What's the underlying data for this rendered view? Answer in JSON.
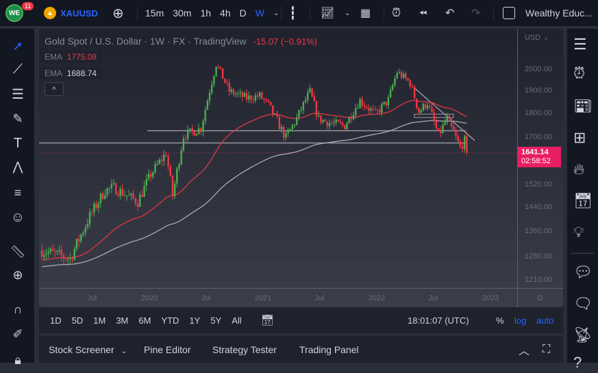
{
  "topbar": {
    "notification_count": "11",
    "symbol": "XAUUSD",
    "intervals": [
      "15m",
      "30m",
      "1h",
      "4h",
      "D",
      "W"
    ],
    "active_interval": "W",
    "layout_name": "Wealthy Educ...",
    "colors": {
      "accent": "#2962ff",
      "badge": "#f23645"
    }
  },
  "legend": {
    "title": "Gold Spot / U.S. Dollar · 1W · FX · TradingView",
    "change": "-15.07 (−0.91%)",
    "ema1_label": "EMA",
    "ema1_value": "1775.08",
    "ema2_label": "EMA",
    "ema2_value": "1688.74",
    "collapse": "^"
  },
  "price_axis": {
    "currency": "USD",
    "ticks": [
      "2000.00",
      "1900.00",
      "1800.00",
      "1700.00",
      "1520.00",
      "1440.00",
      "1360.00",
      "1280.00",
      "1210.00"
    ],
    "last_price": "1641.14",
    "countdown": "02:58:52",
    "scale": "log"
  },
  "time_axis": {
    "ticks": [
      {
        "label": "Jul",
        "date": "2019-07-01"
      },
      {
        "label": "2020",
        "date": "2020-01-01"
      },
      {
        "label": "Jul",
        "date": "2020-07-01"
      },
      {
        "label": "2021",
        "date": "2021-01-01"
      },
      {
        "label": "Jul",
        "date": "2021-07-01"
      },
      {
        "label": "2022",
        "date": "2022-01-01"
      },
      {
        "label": "Jul",
        "date": "2022-07-01"
      },
      {
        "label": "2023",
        "date": "2023-01-01"
      }
    ]
  },
  "range_bar": {
    "ranges": [
      "1D",
      "5D",
      "1M",
      "3M",
      "6M",
      "YTD",
      "1Y",
      "5Y",
      "All"
    ],
    "clock": "18:01:07 (UTC)",
    "percent": "%",
    "log": "log",
    "auto": "auto"
  },
  "bottom_panel": {
    "tabs": [
      "Stock Screener",
      "Pine Editor",
      "Strategy Tester",
      "Trading Panel"
    ]
  },
  "chart_data": {
    "type": "candlestick",
    "symbol": "XAUUSD",
    "interval": "1W",
    "price_path": [
      [
        "2019-01-21",
        1300
      ],
      [
        "2019-04-22",
        1275
      ],
      [
        "2019-06-24",
        1410
      ],
      [
        "2019-08-12",
        1500
      ],
      [
        "2019-09-09",
        1510
      ],
      [
        "2019-11-25",
        1460
      ],
      [
        "2020-01-06",
        1560
      ],
      [
        "2020-02-24",
        1640
      ],
      [
        "2020-03-16",
        1480
      ],
      [
        "2020-04-20",
        1710
      ],
      [
        "2020-06-15",
        1740
      ],
      [
        "2020-08-03",
        2030
      ],
      [
        "2020-09-14",
        1900
      ],
      [
        "2020-11-09",
        1870
      ],
      [
        "2020-12-21",
        1880
      ],
      [
        "2021-01-18",
        1840
      ],
      [
        "2021-03-15",
        1700
      ],
      [
        "2021-04-19",
        1780
      ],
      [
        "2021-05-31",
        1900
      ],
      [
        "2021-06-28",
        1780
      ],
      [
        "2021-08-09",
        1760
      ],
      [
        "2021-09-20",
        1750
      ],
      [
        "2021-11-08",
        1860
      ],
      [
        "2021-12-27",
        1800
      ],
      [
        "2022-02-07",
        1860
      ],
      [
        "2022-03-07",
        1990
      ],
      [
        "2022-04-18",
        1940
      ],
      [
        "2022-05-16",
        1810
      ],
      [
        "2022-06-13",
        1850
      ],
      [
        "2022-07-18",
        1710
      ],
      [
        "2022-08-15",
        1780
      ],
      [
        "2022-09-26",
        1660
      ],
      [
        "2022-10-10",
        1690
      ],
      [
        "2022-10-24",
        1641.14
      ]
    ],
    "ema_fast": {
      "label": "EMA",
      "value": 1775.08,
      "color": "#f23645"
    },
    "ema_slow": {
      "label": "EMA",
      "value": 1688.74,
      "color": "#b2b5be"
    },
    "up_color": "#26a69a",
    "down_color": "#f23645"
  }
}
